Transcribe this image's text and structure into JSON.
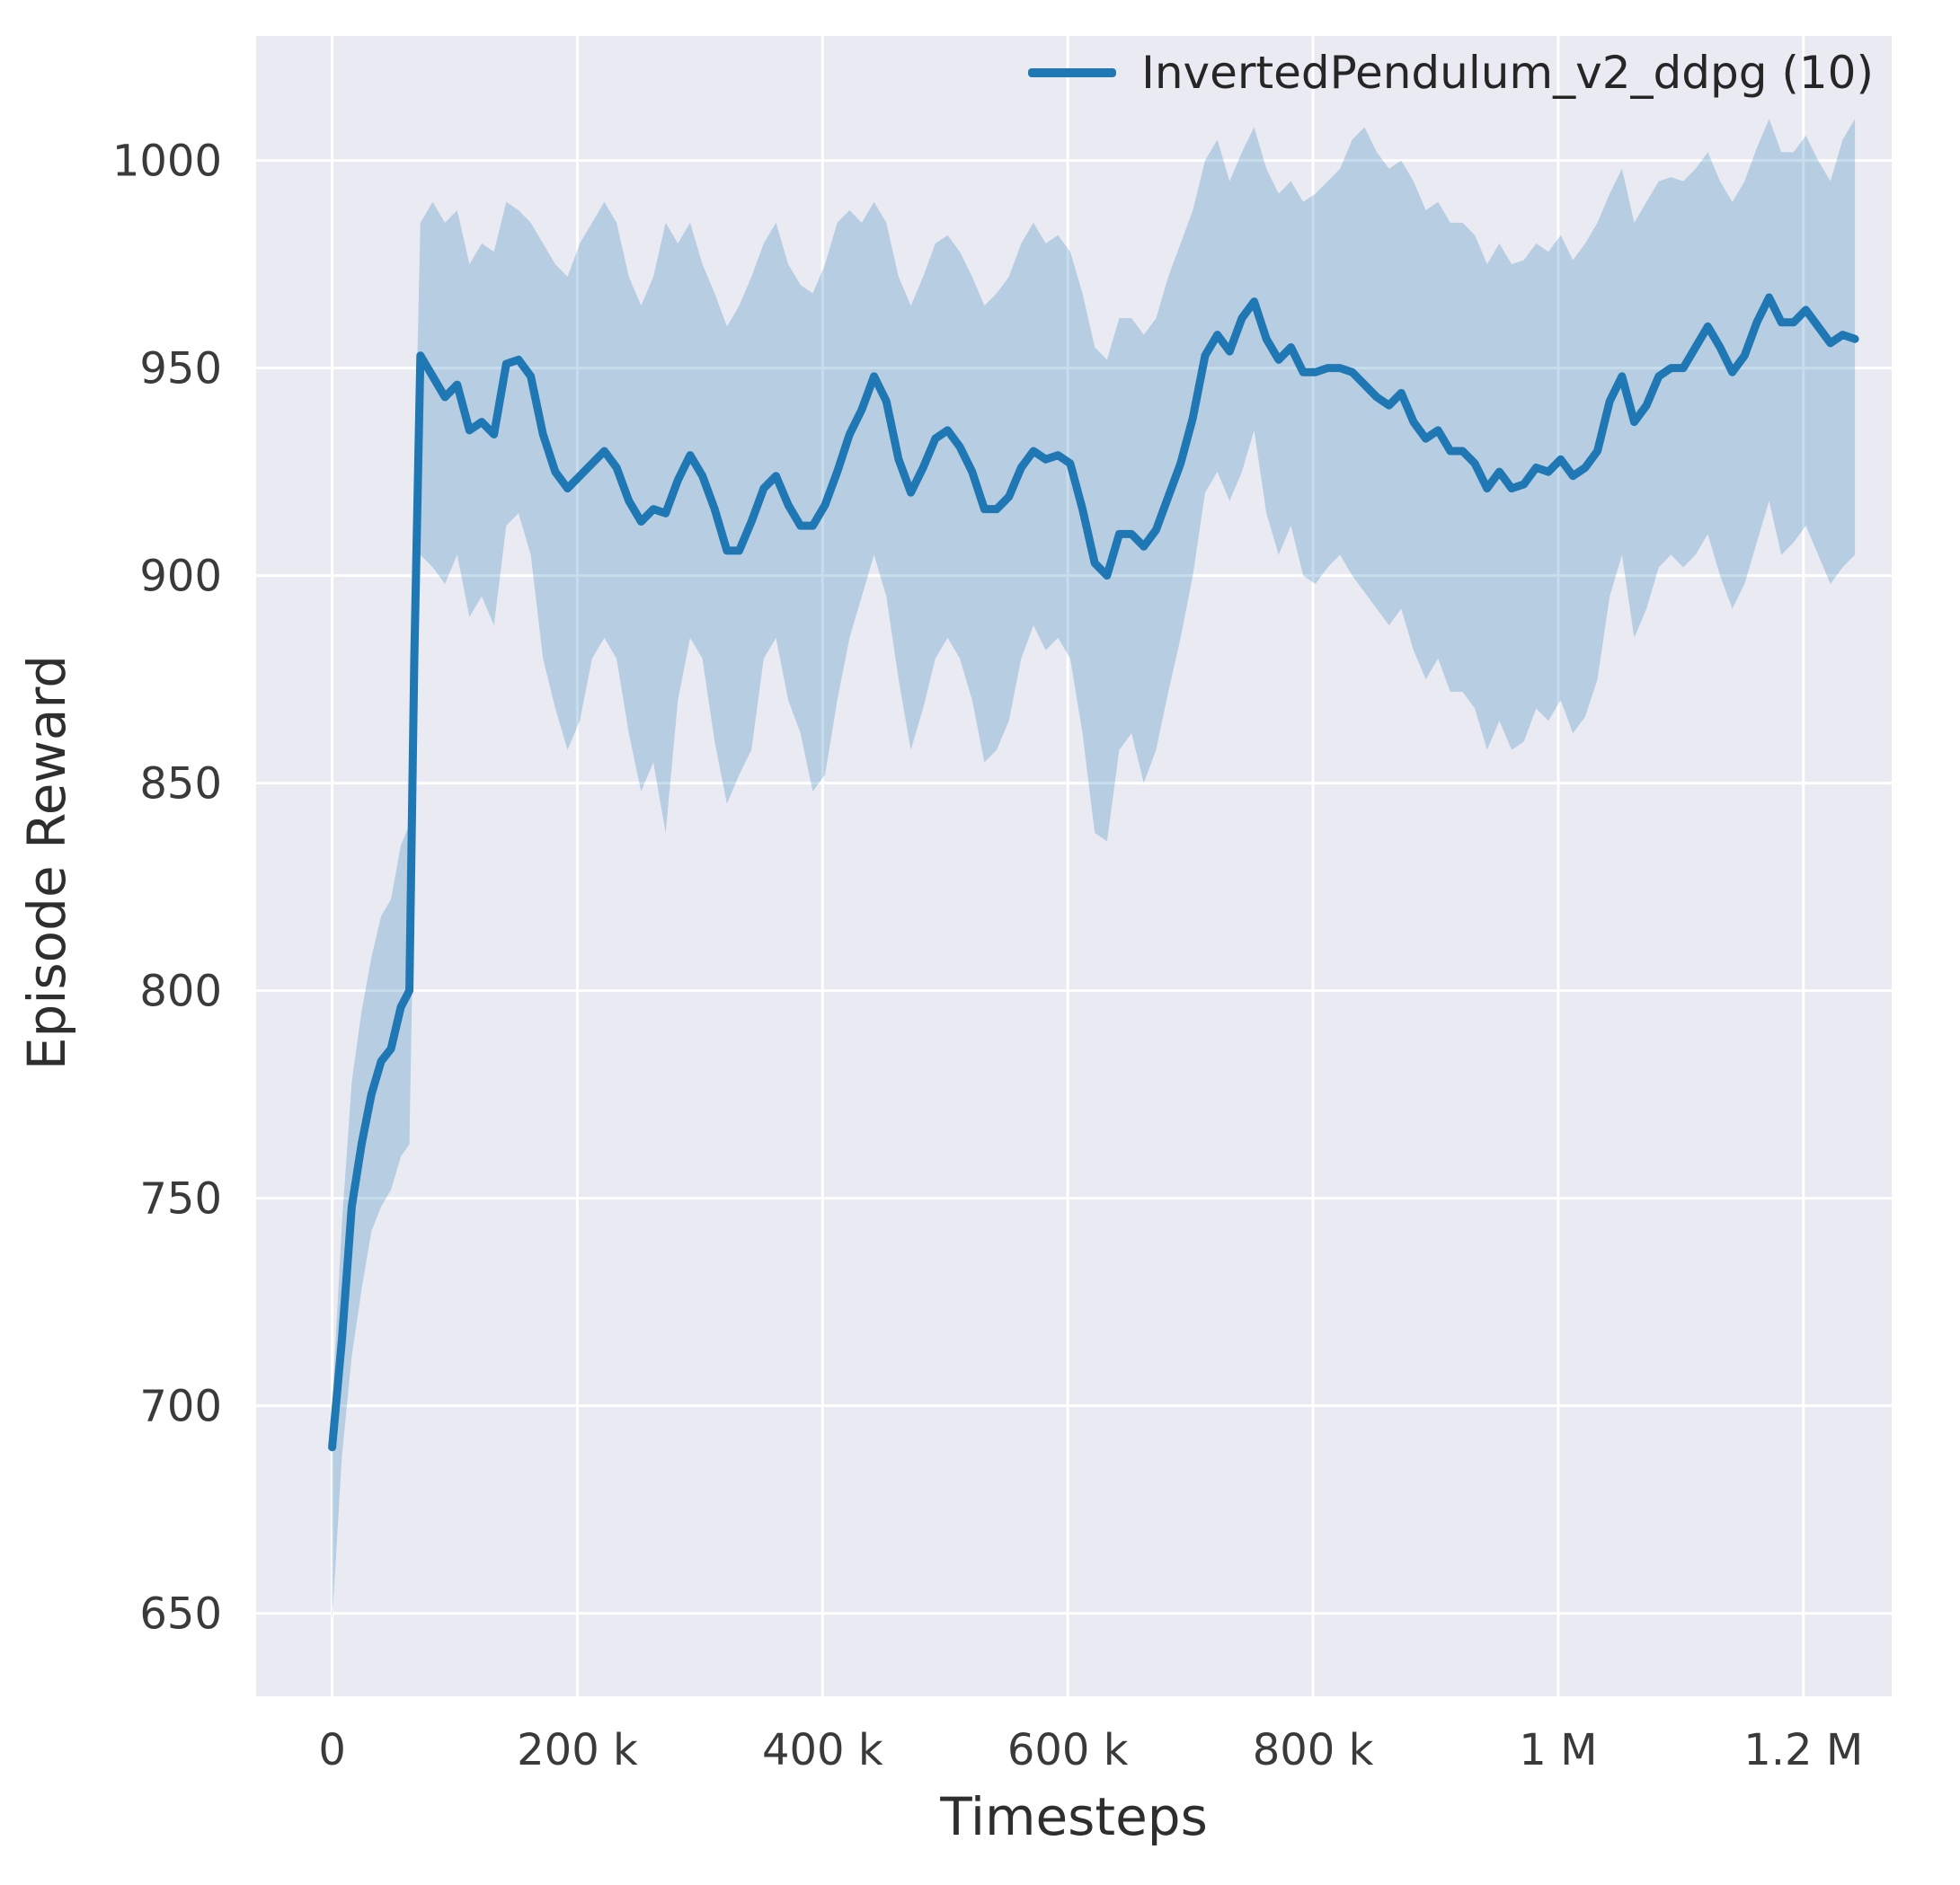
{
  "chart_data": {
    "type": "line",
    "title": "",
    "xlabel": "Timesteps",
    "ylabel": "Episode Reward",
    "grid": true,
    "legend_position": "upper right",
    "xlim": [
      -62000,
      1272000
    ],
    "ylim": [
      630,
      1030
    ],
    "x_unit_multiplier": 1000,
    "colors": {
      "line": "#1f77b4",
      "band": "#1f77b4",
      "plot_background": "#eaeaf2",
      "grid": "#ffffff",
      "tick_text": "#3a3a3a",
      "label_text": "#2e2e2e"
    },
    "x_ticks": {
      "values": [
        0,
        200000,
        400000,
        600000,
        800000,
        1000000,
        1200000
      ],
      "labels": [
        "0",
        "200 k",
        "400 k",
        "600 k",
        "800 k",
        "1 M",
        "1.2 M"
      ]
    },
    "y_ticks": {
      "values": [
        650,
        700,
        750,
        800,
        850,
        900,
        950,
        1000
      ],
      "labels": [
        "650",
        "700",
        "750",
        "800",
        "850",
        "900",
        "950",
        "1000"
      ]
    },
    "series": [
      {
        "name": "InvertedPendulum_v2_ddpg (10)",
        "color": "#1f77b4",
        "band_opacity": 0.25,
        "x": [
          0,
          8,
          16,
          24,
          32,
          40,
          48,
          56,
          63,
          67,
          72,
          82,
          92,
          102,
          112,
          122,
          132,
          142,
          152,
          162,
          172,
          182,
          192,
          202,
          212,
          222,
          232,
          242,
          252,
          262,
          272,
          282,
          292,
          302,
          312,
          322,
          332,
          342,
          352,
          362,
          372,
          382,
          392,
          402,
          412,
          422,
          432,
          442,
          452,
          462,
          472,
          482,
          492,
          502,
          512,
          522,
          532,
          542,
          552,
          562,
          572,
          582,
          592,
          602,
          612,
          622,
          632,
          642,
          652,
          662,
          672,
          682,
          692,
          702,
          712,
          722,
          732,
          742,
          752,
          762,
          772,
          782,
          792,
          802,
          812,
          822,
          832,
          842,
          852,
          862,
          872,
          882,
          892,
          902,
          912,
          922,
          932,
          942,
          952,
          962,
          972,
          982,
          992,
          1002,
          1012,
          1022,
          1032,
          1042,
          1052,
          1062,
          1072,
          1082,
          1092,
          1102,
          1112,
          1122,
          1132,
          1142,
          1152,
          1162,
          1172,
          1182,
          1192,
          1202,
          1212,
          1222,
          1232,
          1242
        ],
        "mean": [
          690,
          716,
          748,
          763,
          775,
          783,
          786,
          796,
          800,
          880,
          953,
          948,
          943,
          946,
          935,
          937,
          934,
          951,
          952,
          948,
          934,
          925,
          921,
          924,
          927,
          930,
          926,
          918,
          913,
          916,
          915,
          923,
          929,
          924,
          916,
          906,
          906,
          913,
          921,
          924,
          917,
          912,
          912,
          917,
          925,
          934,
          940,
          948,
          942,
          928,
          920,
          926,
          933,
          935,
          931,
          925,
          916,
          916,
          919,
          926,
          930,
          928,
          929,
          927,
          916,
          903,
          900,
          910,
          910,
          907,
          911,
          919,
          927,
          938,
          953,
          958,
          954,
          962,
          966,
          957,
          952,
          955,
          949,
          949,
          950,
          950,
          949,
          946,
          943,
          941,
          944,
          937,
          933,
          935,
          930,
          930,
          927,
          921,
          925,
          921,
          922,
          926,
          925,
          928,
          924,
          926,
          930,
          942,
          948,
          937,
          941,
          948,
          950,
          950,
          955,
          960,
          955,
          949,
          953,
          961,
          967,
          961,
          961,
          964,
          960,
          956,
          958,
          957
        ],
        "lower": [
          648,
          688,
          712,
          728,
          742,
          748,
          752,
          760,
          763,
          830,
          905,
          902,
          898,
          905,
          890,
          895,
          888,
          912,
          915,
          905,
          880,
          868,
          858,
          865,
          880,
          885,
          880,
          862,
          848,
          855,
          838,
          870,
          885,
          880,
          860,
          845,
          852,
          858,
          880,
          885,
          870,
          862,
          848,
          852,
          870,
          885,
          895,
          905,
          895,
          875,
          858,
          868,
          880,
          885,
          880,
          870,
          855,
          858,
          865,
          880,
          888,
          882,
          885,
          880,
          862,
          838,
          836,
          858,
          862,
          850,
          858,
          872,
          885,
          900,
          920,
          925,
          918,
          925,
          935,
          915,
          905,
          912,
          900,
          898,
          902,
          905,
          900,
          896,
          892,
          888,
          892,
          882,
          875,
          880,
          872,
          872,
          868,
          858,
          865,
          858,
          860,
          868,
          865,
          870,
          862,
          866,
          875,
          895,
          905,
          885,
          892,
          902,
          905,
          902,
          905,
          910,
          900,
          892,
          898,
          908,
          918,
          905,
          908,
          912,
          905,
          898,
          902,
          905
        ],
        "upper": [
          700,
          744,
          778,
          795,
          808,
          818,
          822,
          835,
          840,
          920,
          985,
          990,
          985,
          988,
          975,
          980,
          978,
          990,
          988,
          985,
          980,
          975,
          972,
          980,
          985,
          990,
          985,
          972,
          965,
          972,
          985,
          980,
          985,
          975,
          968,
          960,
          965,
          972,
          980,
          985,
          975,
          970,
          968,
          975,
          985,
          988,
          985,
          990,
          985,
          972,
          965,
          972,
          980,
          982,
          978,
          972,
          965,
          968,
          972,
          980,
          985,
          980,
          982,
          978,
          968,
          955,
          952,
          962,
          962,
          958,
          962,
          972,
          980,
          988,
          1000,
          1005,
          995,
          1002,
          1008,
          998,
          992,
          995,
          990,
          992,
          995,
          998,
          1005,
          1008,
          1002,
          998,
          1000,
          995,
          988,
          990,
          985,
          985,
          982,
          975,
          980,
          975,
          976,
          980,
          978,
          982,
          976,
          980,
          985,
          992,
          998,
          985,
          990,
          995,
          996,
          995,
          998,
          1002,
          995,
          990,
          995,
          1003,
          1010,
          1002,
          1002,
          1006,
          1000,
          995,
          1005,
          1010
        ]
      }
    ]
  }
}
